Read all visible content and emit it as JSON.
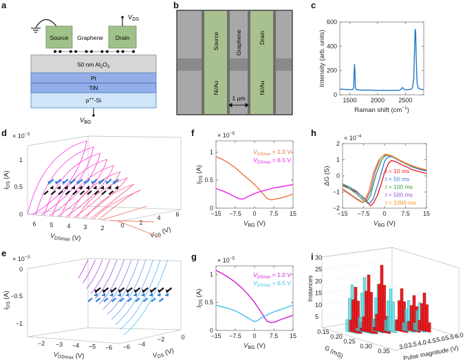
{
  "panel_labels": {
    "a": "a",
    "b": "b",
    "c": "c",
    "d": "d",
    "e": "e",
    "f": "f",
    "g": "g",
    "h": "h",
    "i": "i"
  },
  "a": {
    "source": "Source",
    "graphene": "Graphene",
    "drain": "Drain",
    "vds": {
      "main": "V",
      "sub": "DS"
    },
    "al2o3": {
      "a": "50 nm Al",
      "b": "2",
      "c": "O",
      "d": "3"
    },
    "pt": "Pt",
    "tin": "TiN",
    "si": {
      "a": "p",
      "sup": "++",
      "b": "-Si"
    },
    "vbg": {
      "main": "V",
      "sub": "BG"
    },
    "colors": {
      "contact": "#9fc28a",
      "oxide": "#d6d6d6",
      "metal": "#93aee8",
      "si": "#cfe5f8"
    }
  },
  "b": {
    "source": "Source",
    "graphene": "Graphene",
    "drain": "Drain",
    "niau_left": "Ni/Au",
    "niau_right": "Ni/Au",
    "scale": "1 µm"
  },
  "chart_data": [
    {
      "id": "c",
      "type": "line",
      "title": "",
      "xlabel": {
        "main": "Raman shift (cm",
        "sup": "−1",
        "rest": ")"
      },
      "ylabel": {
        "main": "Intensity (arb. units)"
      },
      "xlim": [
        1320,
        2830
      ],
      "ylim": [
        0,
        600
      ],
      "xticks": [
        1500,
        2000,
        2500
      ],
      "xticklabels": [
        "1500",
        "2000",
        "2500"
      ],
      "yticks": [
        0,
        200,
        400,
        600
      ],
      "yticklabels": [
        "0",
        "200",
        "400",
        "600"
      ],
      "series": [
        {
          "name": "Raman spectrum",
          "color": "#1f77c8",
          "x": [
            1320,
            1400,
            1500,
            1550,
            1570,
            1578,
            1585,
            1592,
            1600,
            1620,
            1700,
            1800,
            1900,
            2000,
            2100,
            2200,
            2300,
            2400,
            2430,
            2450,
            2470,
            2500,
            2550,
            2600,
            2630,
            2650,
            2665,
            2675,
            2685,
            2695,
            2710,
            2730,
            2780,
            2830
          ],
          "y": [
            48,
            44,
            42,
            42,
            60,
            190,
            250,
            190,
            60,
            42,
            38,
            40,
            38,
            36,
            37,
            36,
            36,
            38,
            50,
            60,
            48,
            40,
            42,
            45,
            60,
            140,
            380,
            540,
            520,
            300,
            100,
            55,
            45,
            42
          ]
        }
      ]
    },
    {
      "id": "d",
      "type": "3d-line",
      "multiplier": {
        "base": "× 10",
        "exp": "−3"
      },
      "ylabel": {
        "main": "I",
        "sub": "DS",
        "rest": " (A)"
      },
      "xlabel": {
        "main": "V",
        "sub": "DSmax",
        "rest": " (V)"
      },
      "zlabel": {
        "main": "V",
        "sub": "DS",
        "rest": " (V)"
      },
      "yticklabels": [
        "1",
        "0.5",
        "0"
      ],
      "xticklabels": [
        "6",
        "5",
        "4",
        "3",
        "2"
      ],
      "zticklabels": [
        "0",
        "2",
        "4",
        "6"
      ],
      "vdsmax": [
        6.5,
        6.0,
        5.5,
        5.0,
        4.5,
        4.0,
        3.5,
        3.0,
        2.5,
        2.0,
        1.5,
        1.0
      ],
      "color_range": [
        "#ff3cf0",
        "#f0805a"
      ],
      "marker_ids_A": [
        0.6,
        0.5
      ]
    },
    {
      "id": "e",
      "type": "3d-line",
      "multiplier": {
        "base": "× 10",
        "exp": "−3"
      },
      "ylabel": {
        "main": "I",
        "sub": "DS",
        "rest": " (A)"
      },
      "xlabel": {
        "main": "V",
        "sub": "DSmax",
        "rest": " (V)"
      },
      "zlabel": {
        "main": "V",
        "sub": "DS",
        "rest": " (V)"
      },
      "yticklabels": [
        "0",
        "−0.5",
        "−1"
      ],
      "xticklabels": [
        "−2",
        "−3",
        "−4",
        "−5",
        "−6"
      ],
      "zticklabels": [
        "−6",
        "−4",
        "−2",
        "0"
      ],
      "vdsmax": [
        -1.0,
        -1.5,
        -2.0,
        -2.5,
        -3.0,
        -3.5,
        -4.0,
        -4.5,
        -5.0,
        -5.5,
        -6.0,
        -6.5
      ],
      "color_range": [
        "#c83ce0",
        "#5cc8ff"
      ],
      "marker_ids_A": [
        -0.45,
        -0.55
      ]
    },
    {
      "id": "f",
      "type": "line",
      "multiplier": {
        "base": "× 10",
        "exp": "−5"
      },
      "xlabel": {
        "main": "V",
        "sub": "BG",
        "rest": " (V)"
      },
      "ylabel": {
        "main": "I",
        "sub": "DS",
        "rest": " (A)"
      },
      "xlim": [
        -15,
        15
      ],
      "ylim": [
        0,
        1.2
      ],
      "xticks": [
        -15,
        -7.5,
        0,
        7.5,
        15
      ],
      "xticklabels": [
        "−15",
        "−7.5",
        "0",
        "7.5",
        "15"
      ],
      "yticks": [
        0,
        0.5,
        1
      ],
      "yticklabels": [
        "0",
        "0.5",
        "1"
      ],
      "series": [
        {
          "legend": {
            "main": "V",
            "sub": "DSmax",
            "rest": " = 1.0 V"
          },
          "color": "#f0703a",
          "x": [
            -15,
            -12.5,
            -10,
            -7.5,
            -5,
            -2.5,
            0,
            2.5,
            4,
            5,
            6.5,
            8,
            10,
            12.5,
            15
          ],
          "y": [
            0.92,
            0.87,
            0.8,
            0.72,
            0.62,
            0.52,
            0.42,
            0.3,
            0.22,
            0.17,
            0.15,
            0.16,
            0.18,
            0.21,
            0.25
          ]
        },
        {
          "legend": {
            "main": "V",
            "sub": "DSmax",
            "rest": " = 6.5 V"
          },
          "color": "#f020f0",
          "x": [
            -15,
            -12.5,
            -10,
            -7.5,
            -6,
            -5,
            -4,
            -2.5,
            0,
            2.5,
            5,
            7.5,
            10,
            12.5,
            15
          ],
          "y": [
            0.35,
            0.31,
            0.26,
            0.2,
            0.17,
            0.16,
            0.17,
            0.21,
            0.26,
            0.3,
            0.33,
            0.36,
            0.38,
            0.4,
            0.42
          ]
        }
      ]
    },
    {
      "id": "g",
      "type": "line",
      "multiplier": {
        "base": "× 10",
        "exp": "−5"
      },
      "xlabel": {
        "main": "V",
        "sub": "BG",
        "rest": " (V)"
      },
      "ylabel": {
        "main": "I",
        "sub": "DS",
        "rest": " (A)"
      },
      "xlim": [
        -15,
        15
      ],
      "ylim": [
        0,
        1.15
      ],
      "xticks": [
        -15,
        -7.5,
        0,
        7.5,
        15
      ],
      "xticklabels": [
        "−15",
        "−7.5",
        "0",
        "7.5",
        "15"
      ],
      "yticks": [
        0,
        0.5,
        1
      ],
      "yticklabels": [
        "0",
        "0.5",
        "1"
      ],
      "series": [
        {
          "legend": {
            "main": "V",
            "sub": "DSmax",
            "rest": " = 1.0 V"
          },
          "color": "#d014d8",
          "x": [
            -15,
            -12.5,
            -10,
            -7.5,
            -5,
            -2.5,
            0,
            2.5,
            4,
            5,
            6.5,
            8,
            10,
            12.5,
            15
          ],
          "y": [
            1.07,
            1.01,
            0.94,
            0.86,
            0.76,
            0.64,
            0.5,
            0.33,
            0.22,
            0.16,
            0.14,
            0.15,
            0.19,
            0.23,
            0.27
          ]
        },
        {
          "legend": {
            "main": "V",
            "sub": "DSmax",
            "rest": " = 6.5 V"
          },
          "color": "#3cc0f0",
          "x": [
            -15,
            -12.5,
            -10,
            -7.5,
            -5,
            -2.5,
            -1,
            0,
            1,
            2.5,
            5,
            7.5,
            10,
            12.5,
            15
          ],
          "y": [
            0.45,
            0.42,
            0.39,
            0.35,
            0.29,
            0.22,
            0.18,
            0.16,
            0.17,
            0.22,
            0.28,
            0.33,
            0.37,
            0.41,
            0.45
          ]
        }
      ]
    },
    {
      "id": "h",
      "type": "line",
      "multiplier": {
        "base": "× 10",
        "exp": "−4"
      },
      "xlabel": {
        "main": "V",
        "sub": "BG",
        "rest": " (V)"
      },
      "ylabel": {
        "main": "ΔG (S)"
      },
      "xlim": [
        -15,
        15
      ],
      "ylim": [
        -2,
        2
      ],
      "xticks": [
        -15,
        -7.5,
        0,
        7.5,
        15
      ],
      "xticklabels": [
        "−15",
        "−7.5",
        "0",
        "7.5",
        "15"
      ],
      "yticks": [
        -2,
        -1,
        0,
        1,
        2
      ],
      "yticklabels": [
        "−2",
        "−1",
        "0",
        "1",
        "2"
      ],
      "series": [
        {
          "legend": {
            "main": "t",
            "rest": " = 10 ms"
          },
          "color": "#e8202a",
          "x": [
            -15,
            -12.5,
            -10,
            -7.5,
            -6,
            -5,
            -4,
            -2.5,
            -1,
            0,
            1.5,
            2.5,
            4,
            6,
            8,
            10,
            12.5,
            15
          ],
          "y": [
            -0.6,
            -0.8,
            -1.0,
            -1.35,
            -1.65,
            -1.85,
            -1.7,
            -1.2,
            -0.4,
            0.2,
            0.8,
            0.95,
            0.88,
            0.7,
            0.55,
            0.38,
            0.25,
            0.15
          ]
        },
        {
          "legend": {
            "main": "t",
            "rest": " = 50 ms"
          },
          "color": "#3a7fd0",
          "x": [
            -15,
            -12.5,
            -10,
            -8,
            -6,
            -5,
            -4,
            -2,
            0,
            1,
            2.5,
            5,
            7.5,
            10,
            12.5,
            15
          ],
          "y": [
            -0.5,
            -0.7,
            -0.95,
            -1.3,
            -1.7,
            -1.65,
            -1.4,
            -0.3,
            0.9,
            1.15,
            1.2,
            1.0,
            0.75,
            0.55,
            0.4,
            0.3
          ]
        },
        {
          "legend": {
            "main": "t",
            "rest": " = 100 ms"
          },
          "color": "#3aa040",
          "x": [
            -15,
            -12.5,
            -10,
            -8,
            -7,
            -6,
            -5,
            -3,
            -1,
            0,
            1,
            2.5,
            5,
            7.5,
            10,
            12.5,
            15
          ],
          "y": [
            -0.5,
            -0.8,
            -1.1,
            -1.45,
            -1.6,
            -1.5,
            -1.2,
            0.1,
            1.0,
            1.22,
            1.28,
            1.2,
            0.98,
            0.75,
            0.58,
            0.45,
            0.35
          ]
        },
        {
          "legend": {
            "main": "t",
            "rest": " = 500 ms"
          },
          "color": "#9a50d0",
          "x": [
            -15,
            -12.5,
            -10,
            -8,
            -7.5,
            -6.5,
            -5,
            -3.5,
            -1.5,
            0,
            0.5,
            2.5,
            5,
            7.5,
            10,
            12.5,
            15
          ],
          "y": [
            -0.8,
            -1.1,
            -1.4,
            -1.62,
            -1.62,
            -1.45,
            -0.9,
            0.2,
            1.1,
            1.3,
            1.32,
            1.22,
            1.0,
            0.78,
            0.6,
            0.45,
            0.35
          ]
        },
        {
          "legend": {
            "main": "t",
            "rest": " = 1000 ms"
          },
          "color": "#f79020",
          "x": [
            -15,
            -12.5,
            -10,
            -8,
            -7.5,
            -7,
            -5.5,
            -4,
            -2,
            0,
            0.5,
            2.5,
            5,
            7.5,
            10,
            12.5,
            15
          ],
          "y": [
            -0.85,
            -1.15,
            -1.45,
            -1.65,
            -1.64,
            -1.5,
            -0.9,
            0.2,
            1.0,
            1.33,
            1.35,
            1.25,
            1.02,
            0.8,
            0.62,
            0.48,
            0.38
          ]
        }
      ]
    },
    {
      "id": "i",
      "type": "3d-bar",
      "zlabel": "Instances",
      "xlabel": "G (mS)",
      "ylabel": "Pulse magnitude (V)",
      "zticklabels": [
        "30",
        "25",
        "20",
        "15",
        "10",
        "5"
      ],
      "xticklabels": [
        "0.15",
        "0.20",
        "0.25",
        "0.30",
        "0.35"
      ],
      "yticklabels": [
        "3.0",
        "3.5",
        "4.0",
        "4.5",
        "5.0",
        "5.5",
        "6.0"
      ],
      "series_colors": {
        "cyan": "#40d4dc",
        "red": "#e8141a"
      },
      "groups": [
        {
          "series": "cyan",
          "peak": 20
        },
        {
          "series": "red",
          "peak": 19
        },
        {
          "series": "cyan",
          "peak": 23
        },
        {
          "series": "red",
          "peak": 24
        },
        {
          "series": "cyan",
          "peak": 20
        },
        {
          "series": "red",
          "peak": 28
        },
        {
          "series": "cyan",
          "peak": 18
        },
        {
          "series": "red",
          "peak": 18
        },
        {
          "series": "cyan",
          "peak": 13
        },
        {
          "series": "red",
          "peak": 15
        },
        {
          "series": "cyan",
          "peak": 12
        },
        {
          "series": "red",
          "peak": 16
        }
      ]
    }
  ]
}
